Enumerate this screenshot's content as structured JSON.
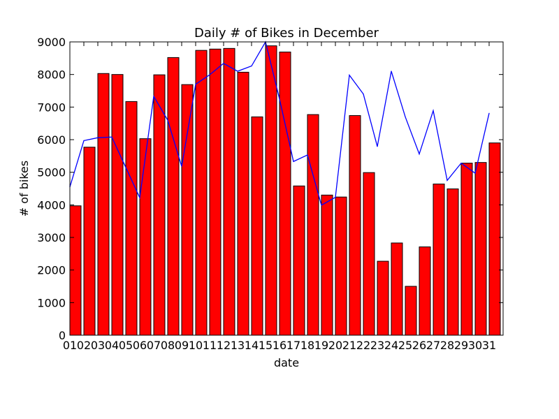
{
  "chart_data": {
    "type": "bar",
    "title": "Daily # of Bikes in December",
    "xlabel": "date",
    "ylabel": "# of bikes",
    "ylim": [
      0,
      9000
    ],
    "yticks": [
      0,
      1000,
      2000,
      3000,
      4000,
      5000,
      6000,
      7000,
      8000,
      9000
    ],
    "categories": [
      "01",
      "02",
      "03",
      "04",
      "05",
      "06",
      "07",
      "08",
      "09",
      "10",
      "11",
      "12",
      "13",
      "14",
      "15",
      "16",
      "17",
      "18",
      "19",
      "20",
      "21",
      "22",
      "23",
      "24",
      "25",
      "26",
      "27",
      "28",
      "29",
      "30",
      "31"
    ],
    "grid": false,
    "series": [
      {
        "kind": "bar",
        "color": "#ff0000",
        "values": [
          3970,
          5770,
          8030,
          8000,
          7170,
          6030,
          7990,
          8520,
          7690,
          8740,
          8780,
          8800,
          8070,
          6700,
          8880,
          8690,
          4580,
          6770,
          4300,
          4240,
          6740,
          4990,
          2270,
          2830,
          1500,
          2710,
          4640,
          4490,
          5280,
          5300,
          5900
        ]
      },
      {
        "kind": "line",
        "color": "#0000ff",
        "values": [
          4550,
          5970,
          6060,
          6080,
          5150,
          4220,
          7330,
          6600,
          5180,
          7700,
          7990,
          8340,
          8100,
          8260,
          9000,
          7250,
          5330,
          5530,
          3990,
          4230,
          7980,
          7400,
          5790,
          8100,
          6700,
          5560,
          6890,
          4750,
          5280,
          4970,
          6810
        ]
      }
    ]
  }
}
